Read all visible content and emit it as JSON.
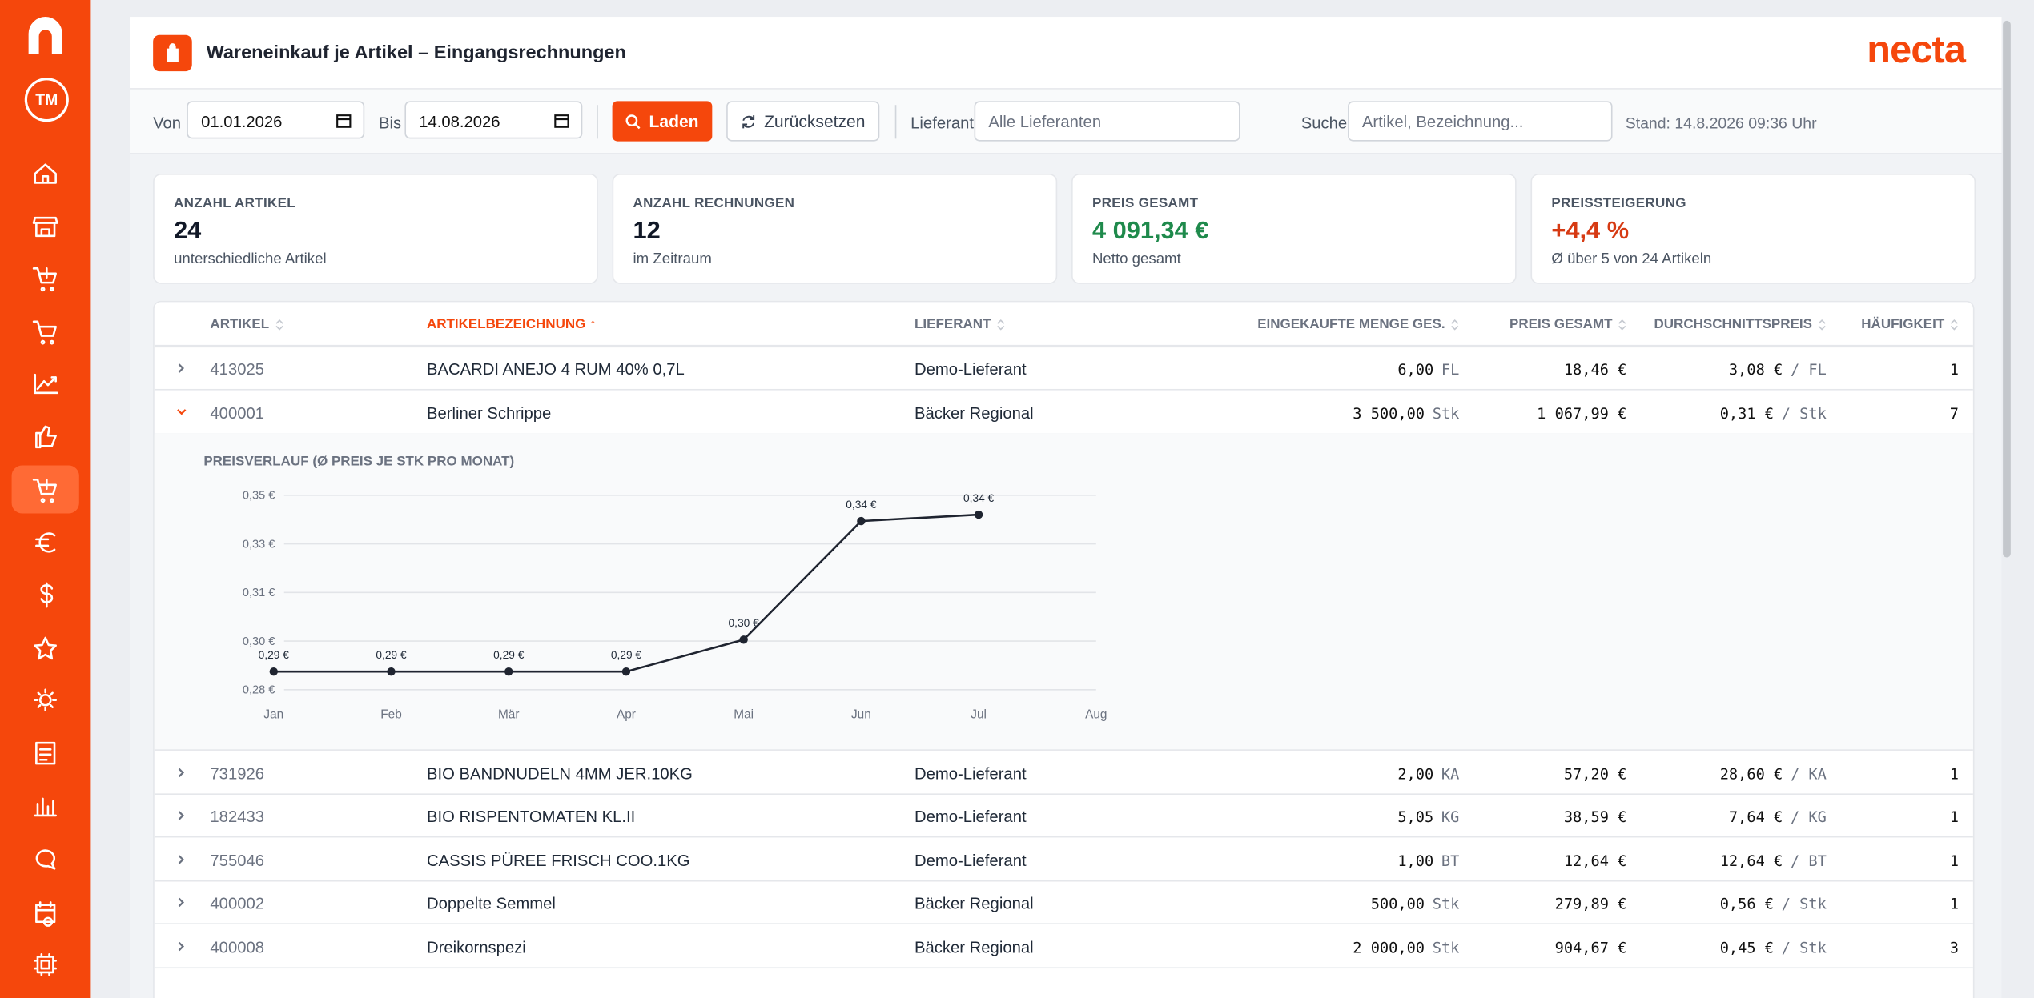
{
  "sidebar": {
    "avatar": "TM"
  },
  "header": {
    "title": "Wareneinkauf je Artikel – Eingangsrechnungen",
    "brand": "necta"
  },
  "filters": {
    "from_label": "Von",
    "from_value": "01.01.2026",
    "to_label": "Bis",
    "to_value": "14.08.2026",
    "load": "Laden",
    "reset": "Zurücksetzen",
    "supplier_label": "Lieferant",
    "supplier_placeholder": "Alle Lieferanten",
    "search_label": "Suche",
    "search_placeholder": "Artikel, Bezeichnung...",
    "stand": "Stand: 14.8.2026 09:36 Uhr"
  },
  "kpis": [
    {
      "label": "ANZAHL ARTIKEL",
      "value": "24",
      "sub": "unterschiedliche Artikel"
    },
    {
      "label": "ANZAHL RECHNUNGEN",
      "value": "12",
      "sub": "im Zeitraum"
    },
    {
      "label": "PREIS GESAMT",
      "value": "4 091,34 €",
      "sub": "Netto gesamt"
    },
    {
      "label": "PREISSTEIGERUNG",
      "value": "+4,4 %",
      "sub": "Ø über 5 von 24 Artikeln"
    }
  ],
  "table": {
    "columns": [
      "ARTIKEL",
      "ARTIKELBEZEICHNUNG ↑",
      "LIEFERANT",
      "EINGEKAUFTE MENGE GES.",
      "PREIS GESAMT",
      "DURCHSCHNITTSPREIS",
      "HÄUFIGKEIT"
    ],
    "rows": [
      {
        "article": "413025",
        "name": "BACARDI ANEJO 4 RUM 40% 0,7L",
        "supplier": "Demo-Lieferant",
        "qty": "6,00",
        "unit": "FL",
        "total": "18,46 €",
        "avg": "3,08 €",
        "avg_unit": "/ FL",
        "count": "1"
      },
      {
        "article": "400001",
        "name": "Berliner Schrippe",
        "supplier": "Bäcker Regional",
        "qty": "3 500,00",
        "unit": "Stk",
        "total": "1 067,99 €",
        "avg": "0,31 €",
        "avg_unit": "/ Stk",
        "count": "7",
        "expanded": true
      },
      {
        "article": "731926",
        "name": "BIO BANDNUDELN 4MM JER.10KG",
        "supplier": "Demo-Lieferant",
        "qty": "2,00",
        "unit": "KA",
        "total": "57,20 €",
        "avg": "28,60 €",
        "avg_unit": "/ KA",
        "count": "1"
      },
      {
        "article": "182433",
        "name": "BIO RISPENTOMATEN KL.II",
        "supplier": "Demo-Lieferant",
        "qty": "5,05",
        "unit": "KG",
        "total": "38,59 €",
        "avg": "7,64 €",
        "avg_unit": "/ KG",
        "count": "1"
      },
      {
        "article": "755046",
        "name": "CASSIS PÜREE FRISCH COO.1KG",
        "supplier": "Demo-Lieferant",
        "qty": "1,00",
        "unit": "BT",
        "total": "12,64 €",
        "avg": "12,64 €",
        "avg_unit": "/ BT",
        "count": "1"
      },
      {
        "article": "400002",
        "name": "Doppelte Semmel",
        "supplier": "Bäcker Regional",
        "qty": "500,00",
        "unit": "Stk",
        "total": "279,89 €",
        "avg": "0,56 €",
        "avg_unit": "/ Stk",
        "count": "1"
      },
      {
        "article": "400008",
        "name": "Dreikornspezi",
        "supplier": "Bäcker Regional",
        "qty": "2 000,00",
        "unit": "Stk",
        "total": "904,67 €",
        "avg": "0,45 €",
        "avg_unit": "/ Stk",
        "count": "3"
      }
    ]
  },
  "chart_data": {
    "type": "line",
    "title": "PREISVERLAUF (Ø PREIS JE STK PRO MONAT)",
    "categories": [
      "Jan",
      "Feb",
      "Mär",
      "Apr",
      "Mai",
      "Jun",
      "Jul",
      "Aug"
    ],
    "values": [
      0.2865,
      0.2865,
      0.2865,
      0.2865,
      0.298,
      0.3407,
      0.343,
      null
    ],
    "value_labels": [
      "0,29 €",
      "0,29 €",
      "0,29 €",
      "0,29 €",
      "0,30 €",
      "0,34 €",
      "0,34 €",
      null
    ],
    "color": "#1f2430",
    "ylim": [
      0.28,
      0.35
    ],
    "yticks": [
      {
        "value": 0.28,
        "label": "0,28 €"
      },
      {
        "value": 0.2975,
        "label": "0,30 €"
      },
      {
        "value": 0.315,
        "label": "0,31 €"
      },
      {
        "value": 0.3325,
        "label": "0,33 €"
      },
      {
        "value": 0.35,
        "label": "0,35 €"
      }
    ],
    "grid": true
  }
}
